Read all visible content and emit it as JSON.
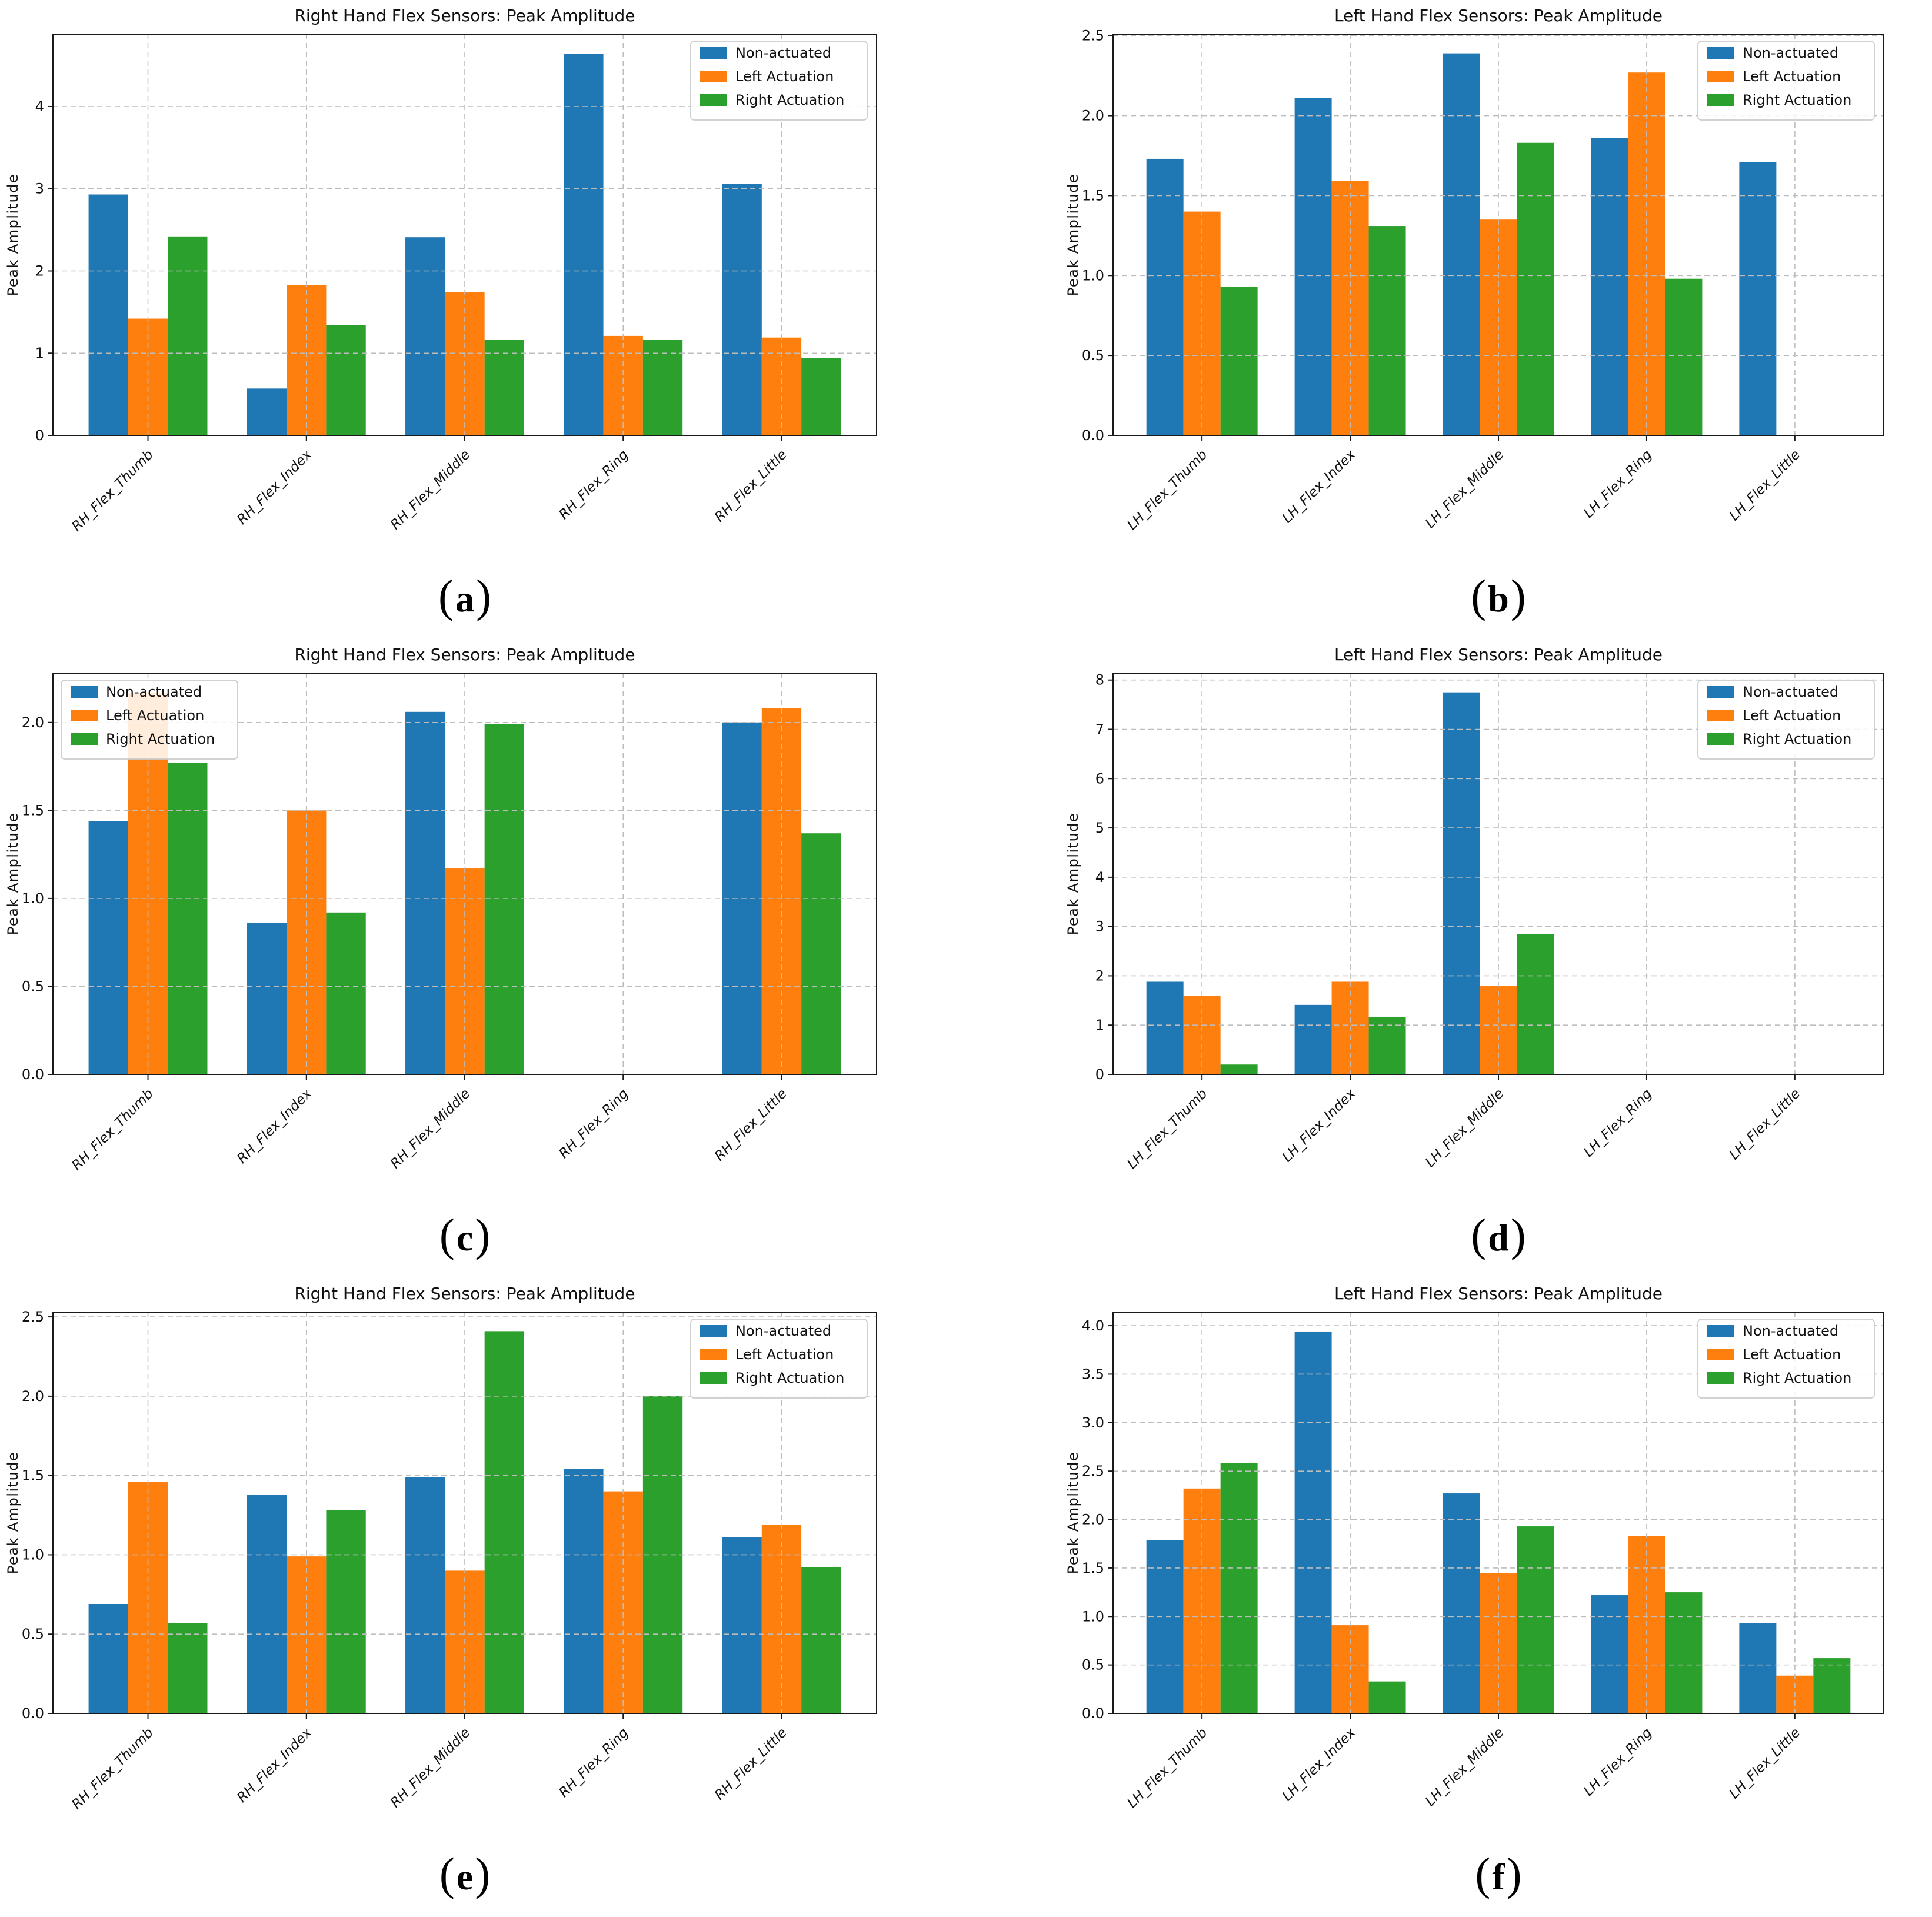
{
  "palette": {
    "blue": "#1f77b4",
    "orange": "#ff7f0e",
    "green": "#2ca02c"
  },
  "chart_data": [
    {
      "type": "bar",
      "caption": {
        "open": "(",
        "letter": "a",
        "close": ")"
      },
      "title": "Right Hand Flex Sensors: Peak Amplitude",
      "ylabel": "Peak Amplitude",
      "xlabel": "",
      "categories": [
        "RH_Flex_Thumb",
        "RH_Flex_Index",
        "RH_Flex_Middle",
        "RH_Flex_Ring",
        "RH_Flex_Little"
      ],
      "series": [
        {
          "name": "Non-actuated",
          "color": "#1f77b4",
          "values": [
            2.93,
            0.57,
            2.41,
            4.64,
            3.06
          ]
        },
        {
          "name": "Left Actuation",
          "color": "#ff7f0e",
          "values": [
            1.42,
            1.83,
            1.74,
            1.21,
            1.19
          ]
        },
        {
          "name": "Right Actuation",
          "color": "#2ca02c",
          "values": [
            2.42,
            1.34,
            1.16,
            1.16,
            0.94
          ]
        }
      ],
      "ylim": [
        0,
        4.88
      ],
      "yticks": [
        0,
        1,
        2,
        3,
        4
      ],
      "ytick_labels": [
        "0",
        "1",
        "2",
        "3",
        "4"
      ],
      "legend_position": "upper-right",
      "grid": true,
      "grid_style": "dashed"
    },
    {
      "type": "bar",
      "caption": {
        "open": "(",
        "letter": "b",
        "close": ")"
      },
      "title": "Left Hand Flex Sensors: Peak Amplitude",
      "ylabel": "Peak Amplitude",
      "xlabel": "",
      "categories": [
        "LH_Flex_Thumb",
        "LH_Flex_Index",
        "LH_Flex_Middle",
        "LH_Flex_Ring",
        "LH_Flex_Little"
      ],
      "series": [
        {
          "name": "Non-actuated",
          "color": "#1f77b4",
          "values": [
            1.73,
            2.11,
            2.39,
            1.86,
            1.71
          ]
        },
        {
          "name": "Left Actuation",
          "color": "#ff7f0e",
          "values": [
            1.4,
            1.59,
            1.35,
            2.27,
            0
          ]
        },
        {
          "name": "Right Actuation",
          "color": "#2ca02c",
          "values": [
            0.93,
            1.31,
            1.83,
            0.98,
            0
          ]
        }
      ],
      "ylim": [
        0,
        2.51
      ],
      "yticks": [
        0,
        0.5,
        1.0,
        1.5,
        2.0,
        2.5
      ],
      "ytick_labels": [
        "0.0",
        "0.5",
        "1.0",
        "1.5",
        "2.0",
        "2.5"
      ],
      "legend_position": "upper-right",
      "grid": true,
      "grid_style": "dashed"
    },
    {
      "type": "bar",
      "caption": {
        "open": "(",
        "letter": "c",
        "close": ")"
      },
      "title": "Right Hand Flex Sensors: Peak Amplitude",
      "ylabel": "Peak Amplitude",
      "xlabel": "",
      "categories": [
        "RH_Flex_Thumb",
        "RH_Flex_Index",
        "RH_Flex_Middle",
        "RH_Flex_Ring",
        "RH_Flex_Little"
      ],
      "series": [
        {
          "name": "Non-actuated",
          "color": "#1f77b4",
          "values": [
            1.44,
            0.86,
            2.06,
            0,
            2.0
          ]
        },
        {
          "name": "Left Actuation",
          "color": "#ff7f0e",
          "values": [
            2.17,
            1.5,
            1.17,
            0,
            2.08
          ]
        },
        {
          "name": "Right Actuation",
          "color": "#2ca02c",
          "values": [
            1.77,
            0.92,
            1.99,
            0,
            1.37
          ]
        }
      ],
      "ylim": [
        0,
        2.28
      ],
      "yticks": [
        0,
        0.5,
        1.0,
        1.5,
        2.0
      ],
      "ytick_labels": [
        "0.0",
        "0.5",
        "1.0",
        "1.5",
        "2.0"
      ],
      "legend_position": "upper-left",
      "grid": true,
      "grid_style": "dashed"
    },
    {
      "type": "bar",
      "caption": {
        "open": "(",
        "letter": "d",
        "close": ")"
      },
      "title": "Left Hand Flex Sensors: Peak Amplitude",
      "ylabel": "Peak Amplitude",
      "xlabel": "",
      "categories": [
        "LH_Flex_Thumb",
        "LH_Flex_Index",
        "LH_Flex_Middle",
        "LH_Flex_Ring",
        "LH_Flex_Little"
      ],
      "series": [
        {
          "name": "Non-actuated",
          "color": "#1f77b4",
          "values": [
            1.88,
            1.41,
            7.75,
            0,
            0
          ]
        },
        {
          "name": "Left Actuation",
          "color": "#ff7f0e",
          "values": [
            1.59,
            1.88,
            1.8,
            0,
            0
          ]
        },
        {
          "name": "Right Actuation",
          "color": "#2ca02c",
          "values": [
            0.2,
            1.17,
            2.85,
            0,
            0
          ]
        }
      ],
      "ylim": [
        0,
        8.14
      ],
      "yticks": [
        0,
        1,
        2,
        3,
        4,
        5,
        6,
        7,
        8
      ],
      "ytick_labels": [
        "0",
        "1",
        "2",
        "3",
        "4",
        "5",
        "6",
        "7",
        "8"
      ],
      "legend_position": "upper-right",
      "grid": true,
      "grid_style": "dashed"
    },
    {
      "type": "bar",
      "caption": {
        "open": "(",
        "letter": "e",
        "close": ")"
      },
      "title": "Right Hand Flex Sensors: Peak Amplitude",
      "ylabel": "Peak Amplitude",
      "xlabel": "",
      "categories": [
        "RH_Flex_Thumb",
        "RH_Flex_Index",
        "RH_Flex_Middle",
        "RH_Flex_Ring",
        "RH_Flex_Little"
      ],
      "series": [
        {
          "name": "Non-actuated",
          "color": "#1f77b4",
          "values": [
            0.69,
            1.38,
            1.49,
            1.54,
            1.11
          ]
        },
        {
          "name": "Left Actuation",
          "color": "#ff7f0e",
          "values": [
            1.46,
            0.99,
            0.9,
            1.4,
            1.19
          ]
        },
        {
          "name": "Right Actuation",
          "color": "#2ca02c",
          "values": [
            0.57,
            1.28,
            2.41,
            2.0,
            0.92
          ]
        }
      ],
      "ylim": [
        0,
        2.53
      ],
      "yticks": [
        0,
        0.5,
        1.0,
        1.5,
        2.0,
        2.5
      ],
      "ytick_labels": [
        "0.0",
        "0.5",
        "1.0",
        "1.5",
        "2.0",
        "2.5"
      ],
      "legend_position": "upper-right",
      "grid": true,
      "grid_style": "dashed"
    },
    {
      "type": "bar",
      "caption": {
        "open": "(",
        "letter": "f",
        "close": ")"
      },
      "title": "Left Hand Flex Sensors: Peak Amplitude",
      "ylabel": "Peak Amplitude",
      "xlabel": "",
      "categories": [
        "LH_Flex_Thumb",
        "LH_Flex_Index",
        "LH_Flex_Middle",
        "LH_Flex_Ring",
        "LH_Flex_Little"
      ],
      "series": [
        {
          "name": "Non-actuated",
          "color": "#1f77b4",
          "values": [
            1.79,
            3.94,
            2.27,
            1.22,
            0.93
          ]
        },
        {
          "name": "Left Actuation",
          "color": "#ff7f0e",
          "values": [
            2.32,
            0.91,
            1.45,
            1.83,
            0.39
          ]
        },
        {
          "name": "Right Actuation",
          "color": "#2ca02c",
          "values": [
            2.58,
            0.33,
            1.93,
            1.25,
            0.57
          ]
        }
      ],
      "ylim": [
        0,
        4.14
      ],
      "yticks": [
        0,
        0.5,
        1.0,
        1.5,
        2.0,
        2.5,
        3.0,
        3.5,
        4.0
      ],
      "ytick_labels": [
        "0.0",
        "0.5",
        "1.0",
        "1.5",
        "2.0",
        "2.5",
        "3.0",
        "3.5",
        "4.0"
      ],
      "legend_position": "upper-right",
      "grid": true,
      "grid_style": "dashed"
    }
  ]
}
